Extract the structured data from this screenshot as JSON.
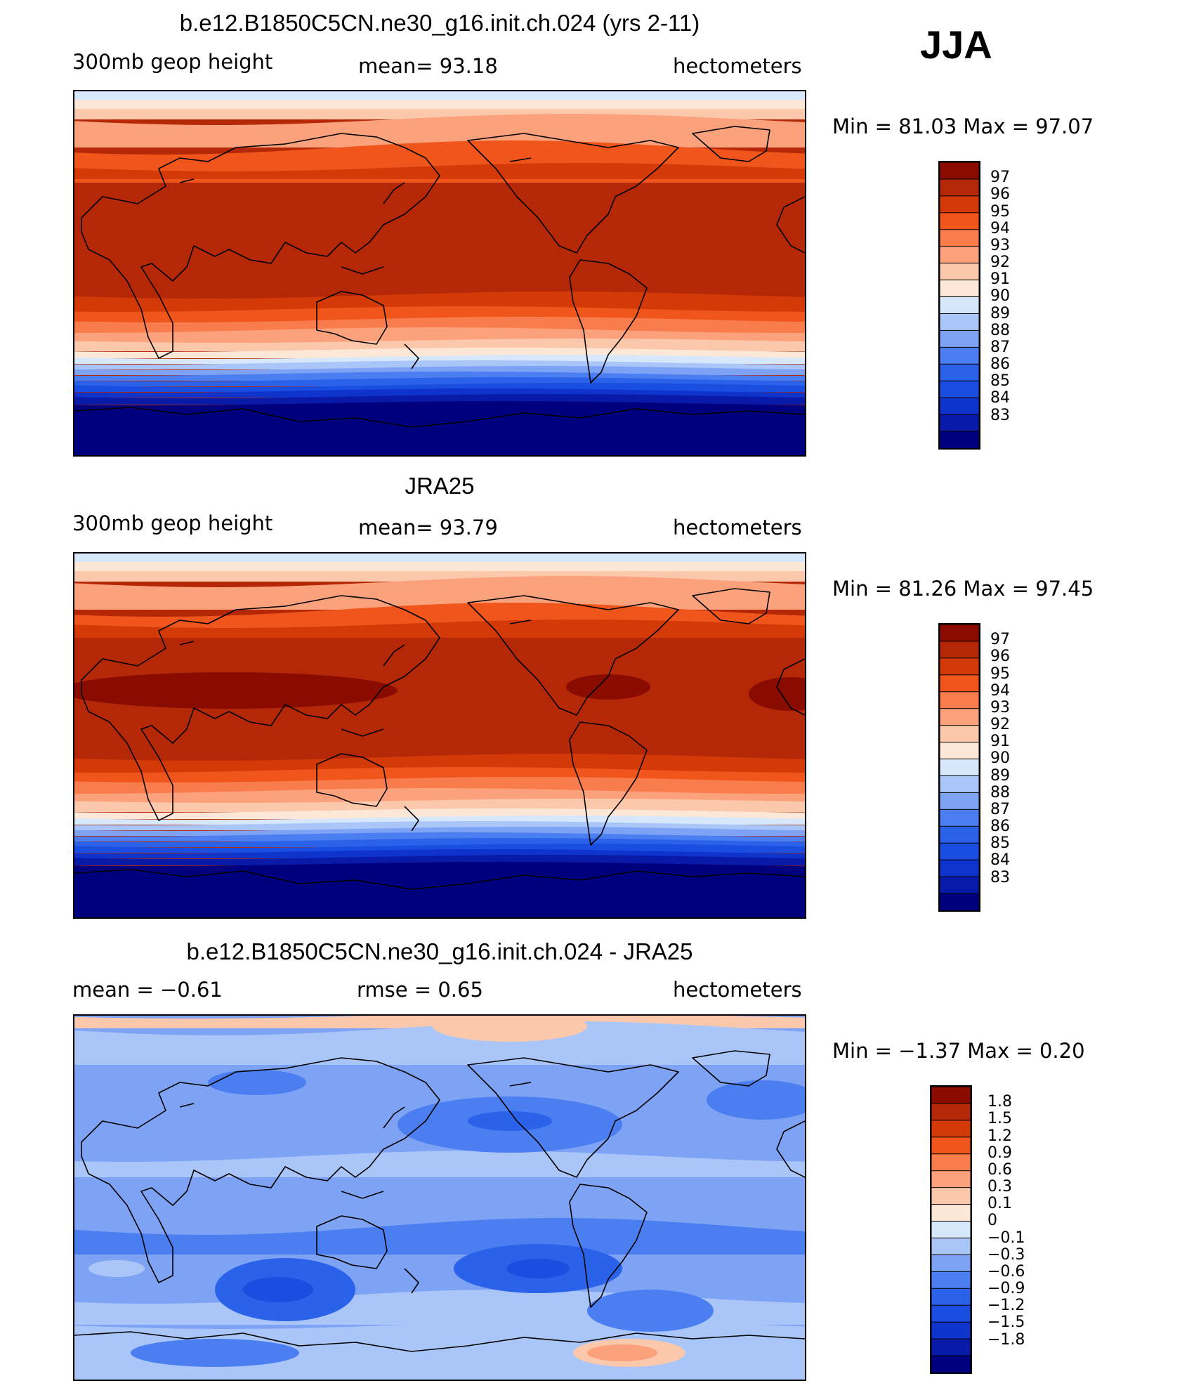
{
  "season": "JJA",
  "colors": {
    "abs": [
      "#00007f",
      "#0a1aa8",
      "#0f34cc",
      "#1a4ee0",
      "#2a63ea",
      "#4b7ef1",
      "#7ea3f5",
      "#aac6f9",
      "#d8e8fc",
      "#fde8d8",
      "#fcc8ac",
      "#fba27c",
      "#f97d4c",
      "#f0551c",
      "#d43a08",
      "#b52807",
      "#8a0c00"
    ],
    "diff": [
      "#00007f",
      "#0a1aa8",
      "#0f34cc",
      "#1a4ee0",
      "#2a63ea",
      "#4b7ef1",
      "#7ea3f5",
      "#aac6f9",
      "#d8e8fc",
      "#fde8d8",
      "#fcc8ac",
      "#fba27c",
      "#f97d4c",
      "#f0551c",
      "#d43a08",
      "#b52807",
      "#8a0c00"
    ]
  },
  "panels": [
    {
      "title": "b.e12.B1850C5CN.ne30_g16.init.ch.024 (yrs 2-11)",
      "left_label": "300mb  geop  height",
      "center_label": "mean=   93.18",
      "units": "hectometers",
      "minmax": "Min  =    81.03  Max  =     97.07",
      "ticks": [
        "97",
        "96",
        "95",
        "94",
        "93",
        "92",
        "91",
        "90",
        "89",
        "88",
        "87",
        "86",
        "85",
        "84",
        "83"
      ]
    },
    {
      "title": "JRA25",
      "left_label": "300mb  geop  height",
      "center_label": "mean=   93.79",
      "units": "hectometers",
      "minmax": "Min  =    81.26  Max  =     97.45",
      "ticks": [
        "97",
        "96",
        "95",
        "94",
        "93",
        "92",
        "91",
        "90",
        "89",
        "88",
        "87",
        "86",
        "85",
        "84",
        "83"
      ]
    },
    {
      "title": "b.e12.B1850C5CN.ne30_g16.init.ch.024 - JRA25",
      "left_label": "mean  =    −0.61",
      "center_label": "rmse  =      0.65",
      "units": "hectometers",
      "minmax": "Min  =   −1.37  Max  =      0.20",
      "ticks": [
        "1.8",
        "1.5",
        "1.2",
        "0.9",
        "0.6",
        "0.3",
        "0.1",
        "0",
        "−0.1",
        "−0.3",
        "−0.6",
        "−0.9",
        "−1.2",
        "−1.5",
        "−1.8"
      ]
    }
  ]
}
